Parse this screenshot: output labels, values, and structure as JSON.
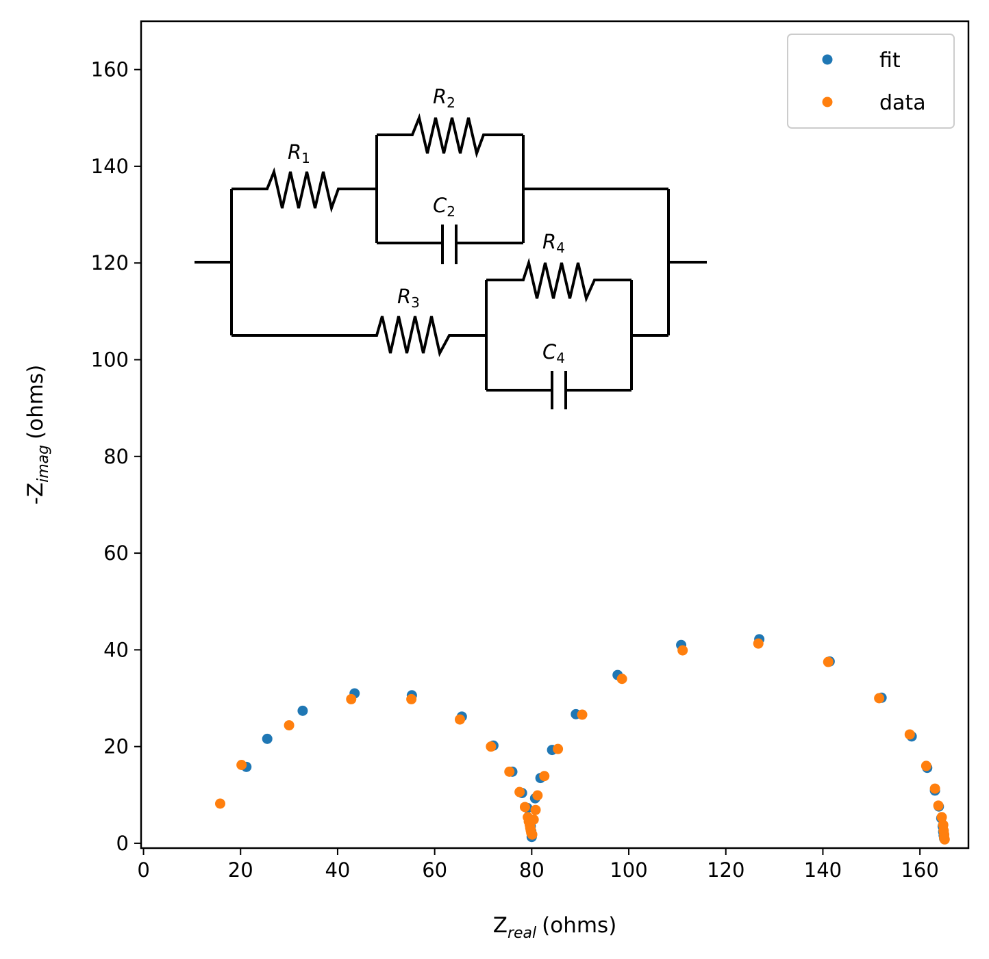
{
  "chart_data": {
    "type": "scatter",
    "xlabel_main": "Z",
    "xlabel_sub": "real",
    "xlabel_unit": "(ohms)",
    "ylabel_prefix": "-Z",
    "ylabel_sub": "imag",
    "ylabel_unit": "(ohms)",
    "xlim": [
      -0.5,
      170
    ],
    "ylim": [
      -1,
      170
    ],
    "xticks": [
      0,
      20,
      40,
      60,
      80,
      100,
      120,
      140,
      160
    ],
    "yticks": [
      0,
      20,
      40,
      60,
      80,
      100,
      120,
      140,
      160
    ],
    "grid": false,
    "legend_position": "top-right",
    "legend": [
      "fit",
      "data"
    ],
    "series": [
      {
        "name": "fit",
        "color": "#1f77b4",
        "points": [
          [
            21.2,
            15.8
          ],
          [
            25.5,
            21.6
          ],
          [
            32.8,
            27.4
          ],
          [
            43.5,
            31.0
          ],
          [
            55.3,
            30.6
          ],
          [
            65.6,
            26.2
          ],
          [
            72.1,
            20.2
          ],
          [
            76.0,
            14.8
          ],
          [
            78.0,
            10.4
          ],
          [
            79.1,
            7.3
          ],
          [
            79.6,
            5.0
          ],
          [
            79.8,
            3.5
          ],
          [
            79.9,
            2.5
          ],
          [
            80.0,
            1.9
          ],
          [
            80.0,
            1.3
          ],
          [
            80.7,
            9.3
          ],
          [
            81.8,
            13.5
          ],
          [
            84.2,
            19.3
          ],
          [
            89.1,
            26.7
          ],
          [
            97.7,
            34.8
          ],
          [
            110.8,
            41.0
          ],
          [
            126.9,
            42.2
          ],
          [
            141.4,
            37.6
          ],
          [
            152.1,
            30.1
          ],
          [
            158.3,
            22.1
          ],
          [
            161.5,
            15.6
          ],
          [
            163.1,
            10.9
          ],
          [
            163.9,
            7.6
          ],
          [
            164.4,
            5.2
          ],
          [
            164.7,
            3.5
          ],
          [
            164.8,
            2.4
          ],
          [
            164.9,
            1.6
          ],
          [
            165.0,
            1.0
          ]
        ]
      },
      {
        "name": "data",
        "color": "#ff7f0e",
        "points": [
          [
            15.8,
            8.2
          ],
          [
            20.2,
            16.2
          ],
          [
            30.0,
            24.4
          ],
          [
            42.8,
            29.8
          ],
          [
            55.2,
            29.8
          ],
          [
            65.2,
            25.6
          ],
          [
            71.6,
            20.0
          ],
          [
            75.4,
            14.8
          ],
          [
            77.5,
            10.6
          ],
          [
            78.6,
            7.5
          ],
          [
            79.2,
            5.4
          ],
          [
            79.4,
            4.5
          ],
          [
            79.6,
            3.8
          ],
          [
            79.7,
            3.2
          ],
          [
            79.8,
            2.7
          ],
          [
            79.9,
            2.2
          ],
          [
            80.1,
            1.8
          ],
          [
            80.4,
            4.9
          ],
          [
            80.8,
            6.9
          ],
          [
            81.2,
            9.9
          ],
          [
            82.6,
            13.9
          ],
          [
            85.4,
            19.5
          ],
          [
            90.4,
            26.6
          ],
          [
            98.6,
            34.0
          ],
          [
            111.1,
            39.9
          ],
          [
            126.7,
            41.3
          ],
          [
            141.1,
            37.5
          ],
          [
            151.6,
            30.0
          ],
          [
            157.9,
            22.5
          ],
          [
            161.3,
            16.0
          ],
          [
            163.1,
            11.3
          ],
          [
            163.8,
            7.8
          ],
          [
            164.5,
            5.4
          ],
          [
            164.8,
            3.8
          ],
          [
            164.9,
            2.6
          ],
          [
            165.0,
            1.8
          ],
          [
            165.0,
            1.2
          ],
          [
            165.1,
            0.8
          ]
        ]
      }
    ],
    "inset_circuit_labels": [
      {
        "base": "R",
        "sub": "1"
      },
      {
        "base": "R",
        "sub": "2"
      },
      {
        "base": "C",
        "sub": "2"
      },
      {
        "base": "R",
        "sub": "3"
      },
      {
        "base": "R",
        "sub": "4"
      },
      {
        "base": "C",
        "sub": "4"
      }
    ]
  }
}
